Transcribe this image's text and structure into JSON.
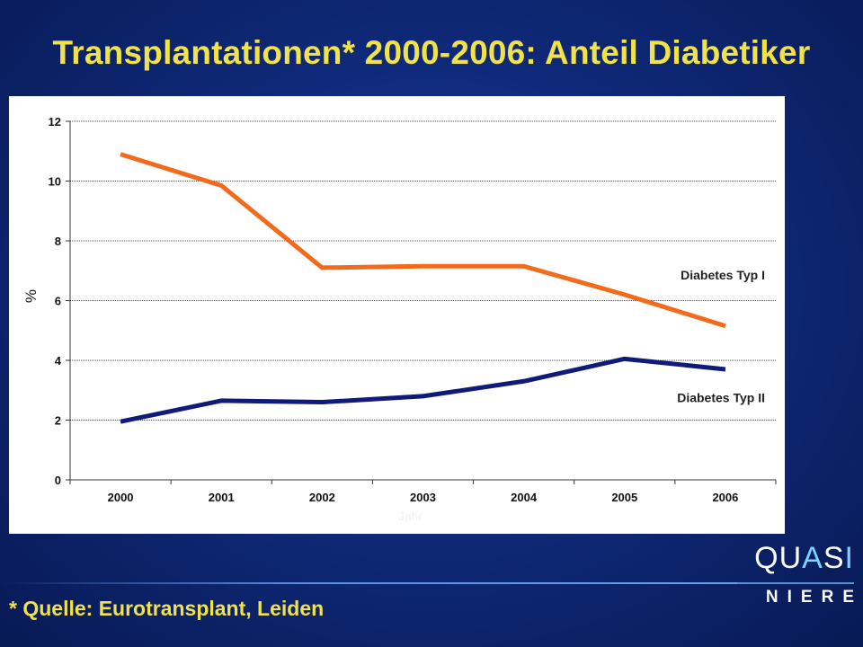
{
  "title": "Transplantationen* 2000-2006: Anteil Diabetiker",
  "footnote": "* Quelle: Eurotransplant, Leiden",
  "logo": {
    "part1": "QU",
    "part2": "A",
    "part3": "S",
    "part4": "I",
    "subtitle": "NIERE"
  },
  "chart_data": {
    "type": "line",
    "categories": [
      "2000",
      "2001",
      "2002",
      "2003",
      "2004",
      "2005",
      "2006"
    ],
    "series": [
      {
        "name": "Diabetes Typ I",
        "values": [
          10.9,
          9.85,
          7.1,
          7.15,
          7.15,
          6.2,
          5.15
        ],
        "color": "#f26a1b"
      },
      {
        "name": "Diabetes Typ II",
        "values": [
          1.95,
          2.65,
          2.6,
          2.8,
          3.3,
          4.05,
          3.7
        ],
        "color": "#101a78"
      }
    ],
    "ylabel": "%",
    "xlabel": "Jahr",
    "ylim": [
      0,
      12
    ],
    "yticks": [
      "0",
      "2",
      "4",
      "6",
      "8",
      "10",
      "12"
    ],
    "grid": true,
    "legend": "inline-right"
  }
}
